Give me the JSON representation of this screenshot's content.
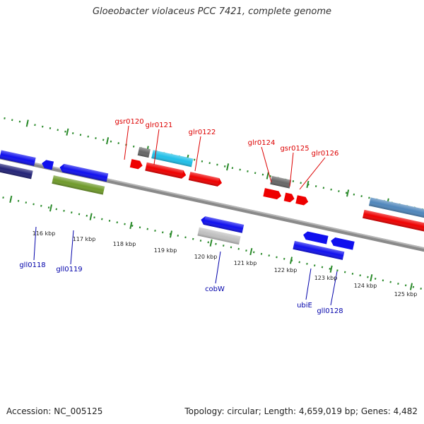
{
  "title": "Gloeobacter violaceus PCC 7421, complete genome",
  "footer": {
    "accession": "Accession: NC_005125",
    "topology": "Topology: circular; Length: 4,659,019 bp; Genes: 4,482"
  },
  "colors": {
    "backbone": "#888888",
    "forward_label": "#dd0000",
    "reverse_label": "#0000aa",
    "tick": "#2a8a2a"
  },
  "scale_labels": [
    "116 kbp",
    "117 kbp",
    "118 kbp",
    "119 kbp",
    "120 kbp",
    "121 kbp",
    "122 kbp",
    "123 kbp",
    "124 kbp",
    "125 kbp"
  ],
  "forward_labels": [
    "gsr0120",
    "glr0121",
    "glr0122",
    "glr0124",
    "gsr0125",
    "glr0126"
  ],
  "reverse_labels": [
    "gll0118",
    "gll0119",
    "cobW",
    "ubiE",
    "gll0128"
  ]
}
